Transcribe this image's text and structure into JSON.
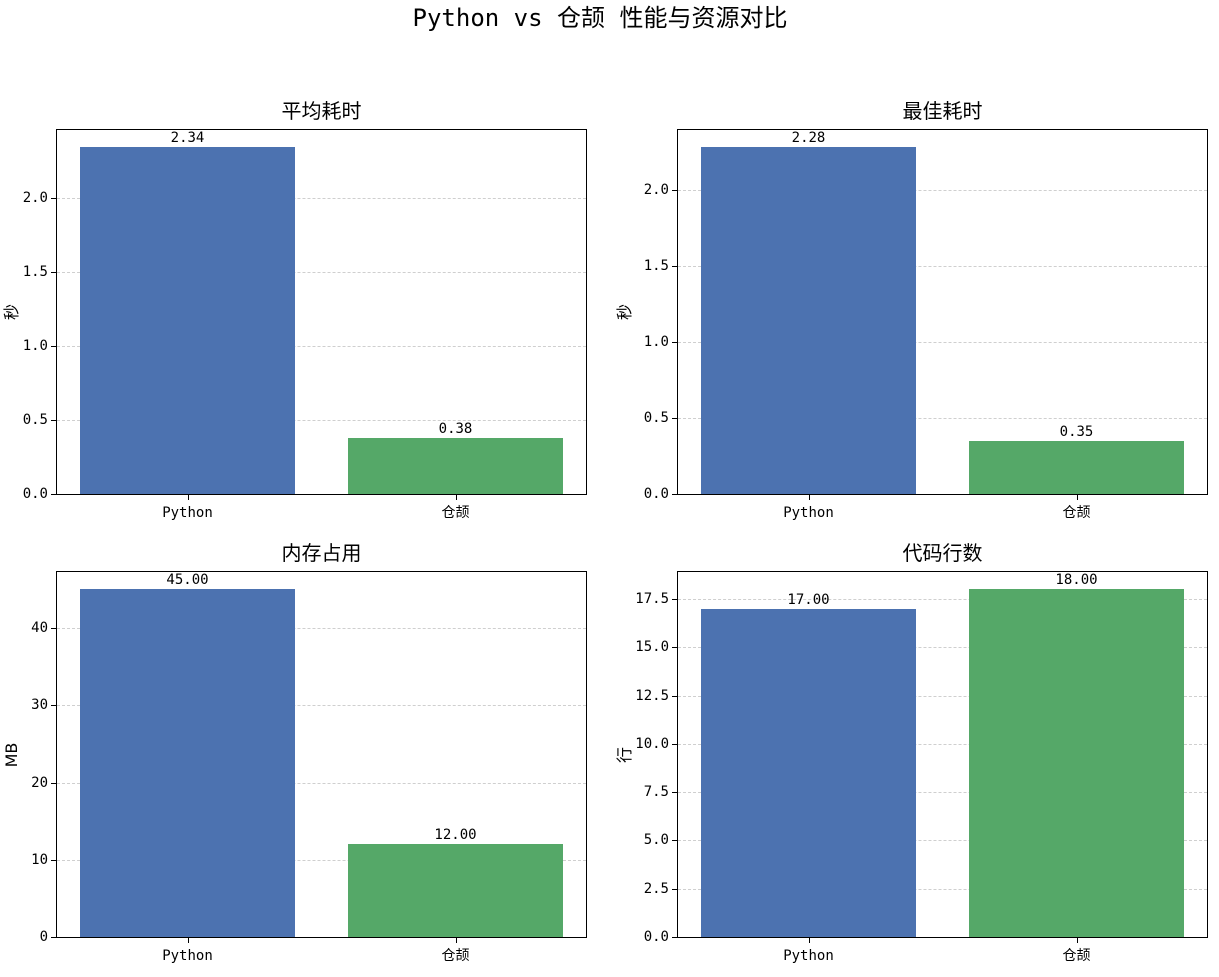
{
  "figure": {
    "suptitle": "Python vs 仓颉 性能与资源对比",
    "colors": {
      "python": "#4c72b0",
      "cangjie": "#55a868",
      "grid": "#cfcfcf"
    }
  },
  "chart_data": [
    {
      "type": "bar",
      "title": "平均耗时",
      "categories": [
        "Python",
        "仓颉"
      ],
      "values": [
        2.34,
        0.38
      ],
      "value_labels": [
        "2.34",
        "0.38"
      ],
      "xlabel": "",
      "ylabel": "秒",
      "ylim": [
        0,
        2.457
      ],
      "yticks": [
        0.0,
        0.5,
        1.0,
        1.5,
        2.0
      ],
      "ytick_labels": [
        "0.0",
        "0.5",
        "1.0",
        "1.5",
        "2.0"
      ],
      "grid": "y-dashed",
      "bar_colors": [
        "#4c72b0",
        "#55a868"
      ]
    },
    {
      "type": "bar",
      "title": "最佳耗时",
      "categories": [
        "Python",
        "仓颉"
      ],
      "values": [
        2.28,
        0.35
      ],
      "value_labels": [
        "2.28",
        "0.35"
      ],
      "xlabel": "",
      "ylabel": "秒",
      "ylim": [
        0,
        2.394
      ],
      "yticks": [
        0.0,
        0.5,
        1.0,
        1.5,
        2.0
      ],
      "ytick_labels": [
        "0.0",
        "0.5",
        "1.0",
        "1.5",
        "2.0"
      ],
      "grid": "y-dashed",
      "bar_colors": [
        "#4c72b0",
        "#55a868"
      ]
    },
    {
      "type": "bar",
      "title": "内存占用",
      "categories": [
        "Python",
        "仓颉"
      ],
      "values": [
        45.0,
        12.0
      ],
      "value_labels": [
        "45.00",
        "12.00"
      ],
      "xlabel": "",
      "ylabel": "MB",
      "ylim": [
        0,
        47.25
      ],
      "yticks": [
        0,
        10,
        20,
        30,
        40
      ],
      "ytick_labels": [
        "0",
        "10",
        "20",
        "30",
        "40"
      ],
      "grid": "y-dashed",
      "bar_colors": [
        "#4c72b0",
        "#55a868"
      ]
    },
    {
      "type": "bar",
      "title": "代码行数",
      "categories": [
        "Python",
        "仓颉"
      ],
      "values": [
        17.0,
        18.0
      ],
      "value_labels": [
        "17.00",
        "18.00"
      ],
      "xlabel": "",
      "ylabel": "行",
      "ylim": [
        0,
        18.9
      ],
      "yticks": [
        0.0,
        2.5,
        5.0,
        7.5,
        10.0,
        12.5,
        15.0,
        17.5
      ],
      "ytick_labels": [
        "0.0",
        "2.5",
        "5.0",
        "7.5",
        "10.0",
        "12.5",
        "15.0",
        "17.5"
      ],
      "grid": "y-dashed",
      "bar_colors": [
        "#4c72b0",
        "#55a868"
      ]
    }
  ]
}
